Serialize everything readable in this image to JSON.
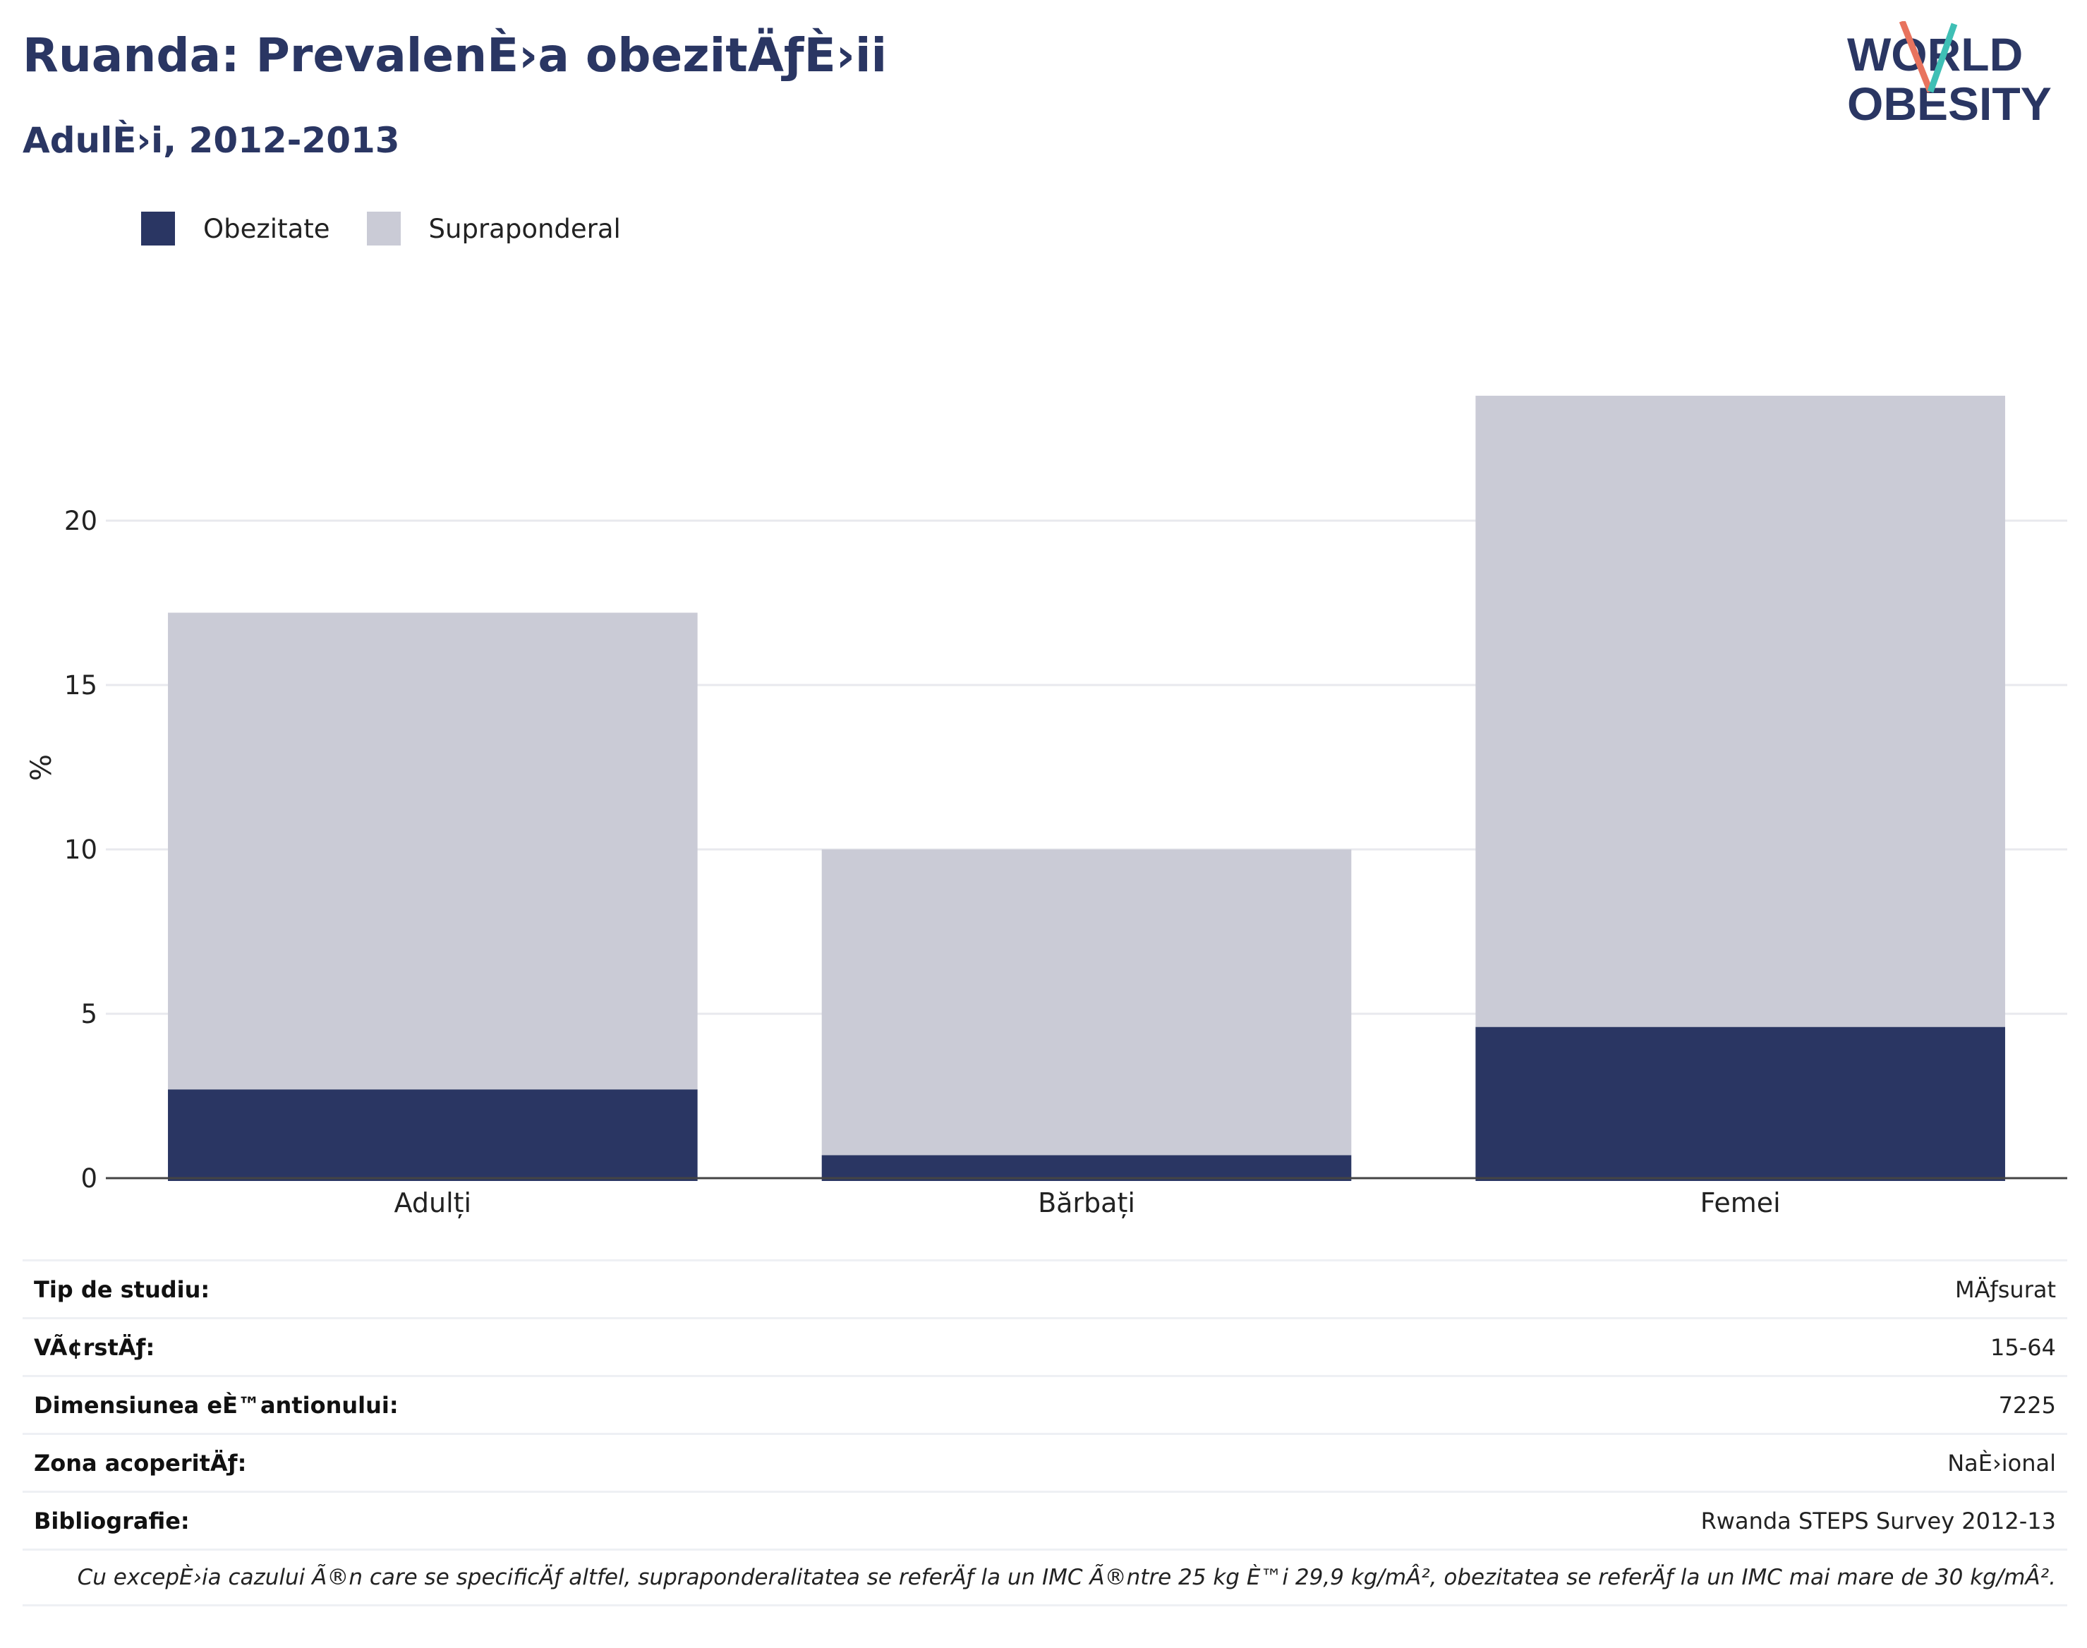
{
  "header": {
    "title": "Ruanda: PrevalenÈ›a obezitÄƒÈ›ii",
    "subtitle": "AdulÈ›i, 2012-2013"
  },
  "logo": {
    "line1": "WORLD",
    "line2": "OBESITY"
  },
  "colors": {
    "obesity": "#2a3663",
    "overweight": "#cacbd6",
    "accent_red": "#e8735e",
    "accent_teal": "#3fbfb5"
  },
  "chart_data": {
    "type": "bar",
    "stacked": true,
    "categories": [
      "Adulți",
      "Bărbați",
      "Femei"
    ],
    "series": [
      {
        "name": "Obezitate",
        "values": [
          2.7,
          0.7,
          4.6
        ]
      },
      {
        "name": "Supraponderal",
        "values": [
          14.5,
          9.3,
          19.2
        ]
      }
    ],
    "ylabel": "%",
    "yticks": [
      0,
      5,
      10,
      15,
      20
    ],
    "ylim": [
      0,
      25
    ],
    "grid": true,
    "legend_position": "top-left"
  },
  "info": {
    "rows": [
      {
        "label": "Tip de studiu:",
        "value": "MÄƒsurat"
      },
      {
        "label": "VÃ¢rstÄƒ:",
        "value": "15-64"
      },
      {
        "label": "Dimensiunea eÈ™antionului:",
        "value": "7225"
      },
      {
        "label": "Zona acoperitÄƒ:",
        "value": "NaÈ›ional"
      },
      {
        "label": "Bibliografie:",
        "value": "Rwanda STEPS Survey 2012-13"
      }
    ],
    "note": "Cu excepÈ›ia cazului Ã®n care se specificÄƒ altfel, supraponderalitatea se referÄƒ la un IMC Ã®ntre 25 kg È™i 29,9 kg/mÂ², obezitatea se referÄƒ la un IMC mai mare de 30 kg/mÂ²."
  }
}
